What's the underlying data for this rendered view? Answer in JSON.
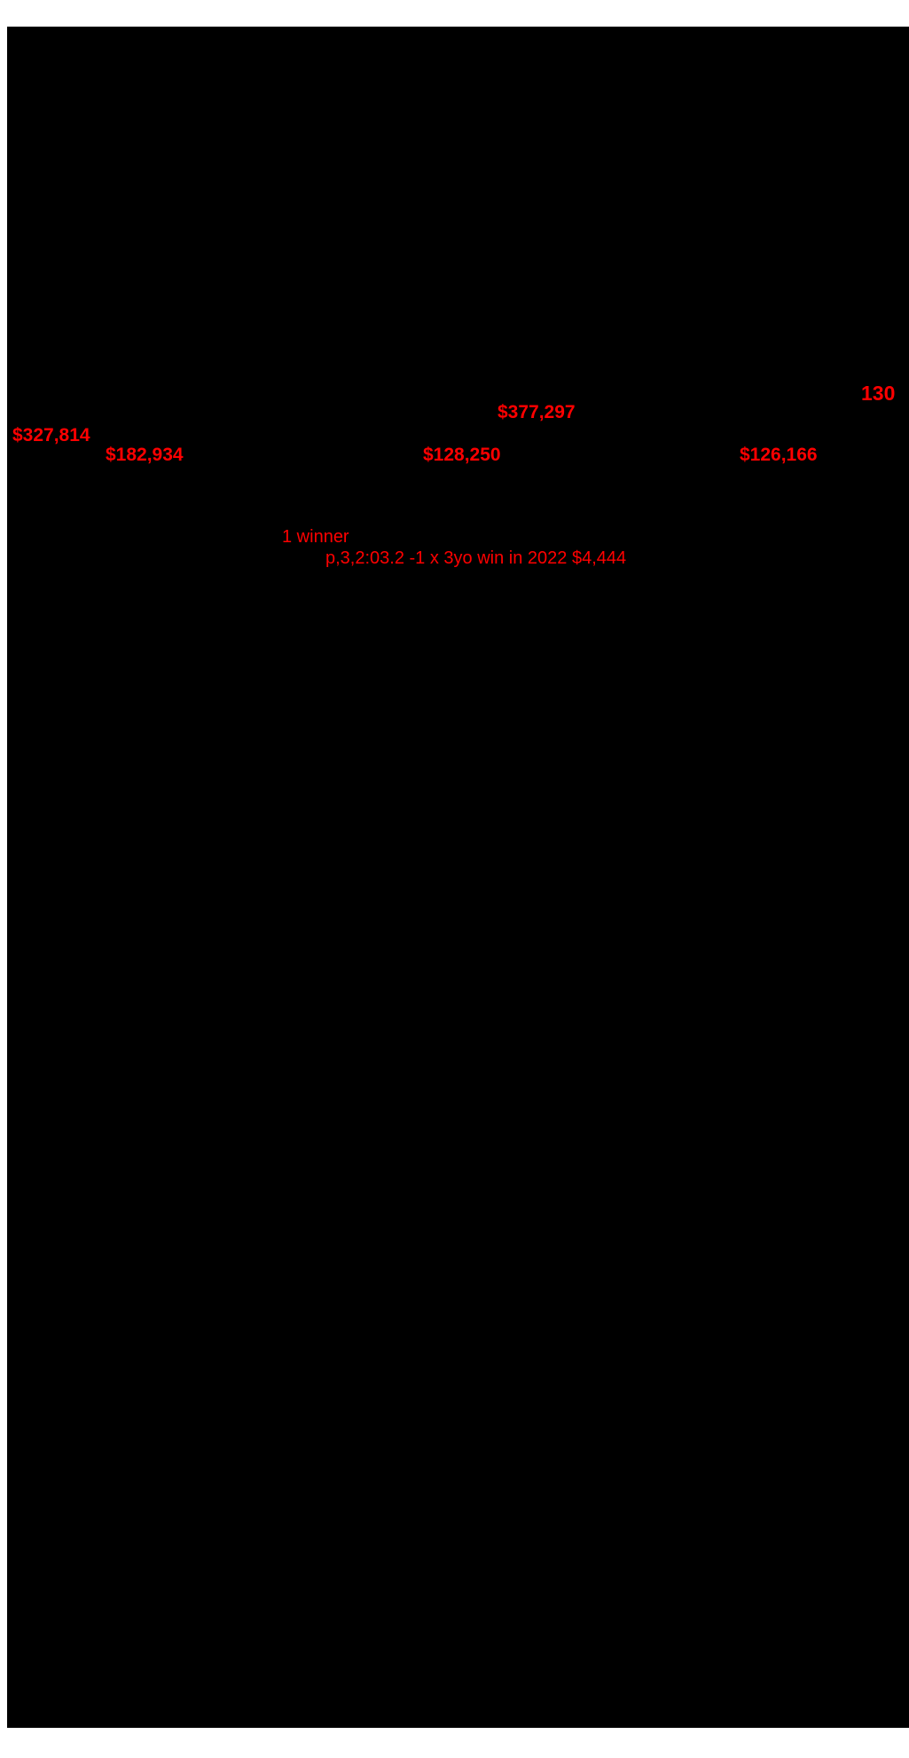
{
  "document": {
    "background_color": "#ffffff",
    "canvas_color": "#000000",
    "highlight_color": "#ff0000"
  },
  "stats": {
    "lot_number": "130",
    "earnings_center_top": "$377,297",
    "earnings_left_upper": "$327,814",
    "earnings_left_lower": "$182,934",
    "earnings_center_lower": "$128,250",
    "earnings_right_lower": "$126,166"
  },
  "progeny": {
    "winners_count": "1 winner",
    "winner_detail": "p,3,2:03.2 -1 x 3yo win in 2022 $4,444"
  }
}
